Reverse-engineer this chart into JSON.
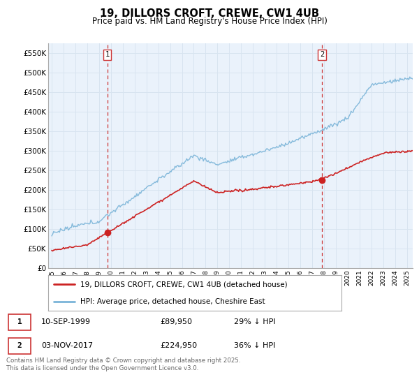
{
  "title": "19, DILLORS CROFT, CREWE, CW1 4UB",
  "subtitle": "Price paid vs. HM Land Registry's House Price Index (HPI)",
  "legend_line1": "19, DILLORS CROFT, CREWE, CW1 4UB (detached house)",
  "legend_line2": "HPI: Average price, detached house, Cheshire East",
  "footnote": "Contains HM Land Registry data © Crown copyright and database right 2025.\nThis data is licensed under the Open Government Licence v3.0.",
  "sale1_label": "1",
  "sale1_date": "10-SEP-1999",
  "sale1_price": "£89,950",
  "sale1_hpi": "29% ↓ HPI",
  "sale2_label": "2",
  "sale2_date": "03-NOV-2017",
  "sale2_price": "£224,950",
  "sale2_hpi": "36% ↓ HPI",
  "hpi_color": "#7ab4d8",
  "price_color": "#cc2222",
  "sale1_year": 1999.7,
  "sale1_value": 89950,
  "sale2_year": 2017.84,
  "sale2_value": 224950,
  "vline_color": "#cc3333",
  "ylim": [
    0,
    575000
  ],
  "xlim_start": 1994.7,
  "xlim_end": 2025.5,
  "yticks": [
    0,
    50000,
    100000,
    150000,
    200000,
    250000,
    300000,
    350000,
    400000,
    450000,
    500000,
    550000
  ],
  "ytick_labels": [
    "£0",
    "£50K",
    "£100K",
    "£150K",
    "£200K",
    "£250K",
    "£300K",
    "£350K",
    "£400K",
    "£450K",
    "£500K",
    "£550K"
  ],
  "xticks": [
    1995,
    1996,
    1997,
    1998,
    1999,
    2000,
    2001,
    2002,
    2003,
    2004,
    2005,
    2006,
    2007,
    2008,
    2009,
    2010,
    2011,
    2012,
    2013,
    2014,
    2015,
    2016,
    2017,
    2018,
    2019,
    2020,
    2021,
    2022,
    2023,
    2024,
    2025
  ],
  "background_color": "#ffffff",
  "grid_color": "#d8e4f0",
  "plot_bg_color": "#eaf2fb"
}
